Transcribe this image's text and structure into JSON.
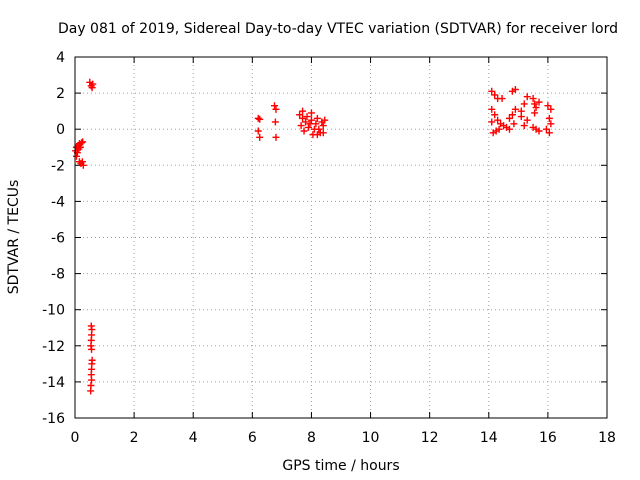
{
  "chart_data": {
    "type": "scatter",
    "title": "Day 081 of 2019, Sidereal Day-to-day VTEC variation (SDTVAR) for receiver lord",
    "xlabel": "GPS time / hours",
    "ylabel": "SDTVAR / TECUs",
    "xlim": [
      0,
      18
    ],
    "ylim": [
      -16,
      4
    ],
    "xticks": [
      0,
      2,
      4,
      6,
      8,
      10,
      12,
      14,
      16,
      18
    ],
    "yticks": [
      4,
      2,
      0,
      -2,
      -4,
      -6,
      -8,
      -10,
      -12,
      -14,
      -16
    ],
    "grid": true,
    "marker": "plus",
    "color": "#ff0000",
    "series": [
      {
        "name": "SDTVAR",
        "points": [
          [
            0.02,
            -1.2
          ],
          [
            0.05,
            -1.0
          ],
          [
            0.08,
            -1.3
          ],
          [
            0.1,
            -0.9
          ],
          [
            0.13,
            -1.1
          ],
          [
            0.15,
            -0.8
          ],
          [
            0.18,
            -1.0
          ],
          [
            0.22,
            -0.75
          ],
          [
            0.26,
            -0.7
          ],
          [
            0.05,
            -1.5
          ],
          [
            0.15,
            -1.8
          ],
          [
            0.2,
            -1.9
          ],
          [
            0.25,
            -1.8
          ],
          [
            0.28,
            -2.0
          ],
          [
            0.5,
            2.6
          ],
          [
            0.55,
            2.4
          ],
          [
            0.6,
            2.5
          ],
          [
            0.58,
            2.3
          ],
          [
            0.55,
            -10.9
          ],
          [
            0.57,
            -11.1
          ],
          [
            0.56,
            -11.4
          ],
          [
            0.55,
            -11.7
          ],
          [
            0.54,
            -12.0
          ],
          [
            0.56,
            -12.2
          ],
          [
            0.58,
            -12.8
          ],
          [
            0.57,
            -13.0
          ],
          [
            0.56,
            -13.3
          ],
          [
            0.55,
            -13.6
          ],
          [
            0.56,
            -13.9
          ],
          [
            0.54,
            -14.2
          ],
          [
            0.53,
            -14.5
          ],
          [
            6.2,
            0.6
          ],
          [
            6.25,
            0.55
          ],
          [
            6.2,
            -0.1
          ],
          [
            6.25,
            -0.45
          ],
          [
            6.75,
            1.3
          ],
          [
            6.8,
            1.1
          ],
          [
            6.78,
            0.4
          ],
          [
            6.8,
            -0.45
          ],
          [
            7.6,
            0.8
          ],
          [
            7.7,
            0.6
          ],
          [
            7.8,
            0.4
          ],
          [
            7.9,
            0.1
          ],
          [
            8.0,
            0.5
          ],
          [
            8.1,
            0.0
          ],
          [
            8.2,
            0.6
          ],
          [
            8.3,
            -0.2
          ],
          [
            8.4,
            0.2
          ],
          [
            8.45,
            0.5
          ],
          [
            7.65,
            0.2
          ],
          [
            7.75,
            -0.1
          ],
          [
            7.85,
            0.7
          ],
          [
            7.95,
            0.3
          ],
          [
            8.05,
            -0.3
          ],
          [
            8.15,
            0.3
          ],
          [
            8.25,
            0.0
          ],
          [
            8.35,
            0.4
          ],
          [
            8.4,
            -0.2
          ],
          [
            7.7,
            1.0
          ],
          [
            8.0,
            0.9
          ],
          [
            8.2,
            -0.3
          ],
          [
            14.1,
            2.1
          ],
          [
            14.2,
            1.9
          ],
          [
            14.3,
            1.7
          ],
          [
            14.45,
            1.7
          ],
          [
            14.8,
            2.1
          ],
          [
            14.9,
            2.2
          ],
          [
            14.1,
            1.1
          ],
          [
            14.2,
            0.8
          ],
          [
            14.3,
            0.5
          ],
          [
            14.4,
            0.3
          ],
          [
            14.5,
            0.2
          ],
          [
            14.6,
            0.1
          ],
          [
            14.7,
            0.0
          ],
          [
            14.1,
            0.4
          ],
          [
            14.15,
            -0.2
          ],
          [
            14.25,
            -0.1
          ],
          [
            14.35,
            0.0
          ],
          [
            14.7,
            0.6
          ],
          [
            14.8,
            0.8
          ],
          [
            14.9,
            1.1
          ],
          [
            14.85,
            0.3
          ],
          [
            15.1,
            1.0
          ],
          [
            15.2,
            1.4
          ],
          [
            15.3,
            1.8
          ],
          [
            15.1,
            0.7
          ],
          [
            15.2,
            0.2
          ],
          [
            15.3,
            0.5
          ],
          [
            15.5,
            1.7
          ],
          [
            15.55,
            1.4
          ],
          [
            15.6,
            1.2
          ],
          [
            15.7,
            1.5
          ],
          [
            15.5,
            0.1
          ],
          [
            15.6,
            0.0
          ],
          [
            15.7,
            -0.1
          ],
          [
            15.55,
            0.9
          ],
          [
            16.0,
            1.3
          ],
          [
            16.1,
            1.1
          ],
          [
            16.05,
            0.6
          ],
          [
            16.1,
            0.3
          ],
          [
            16.05,
            -0.2
          ],
          [
            15.95,
            0.0
          ]
        ]
      }
    ]
  }
}
